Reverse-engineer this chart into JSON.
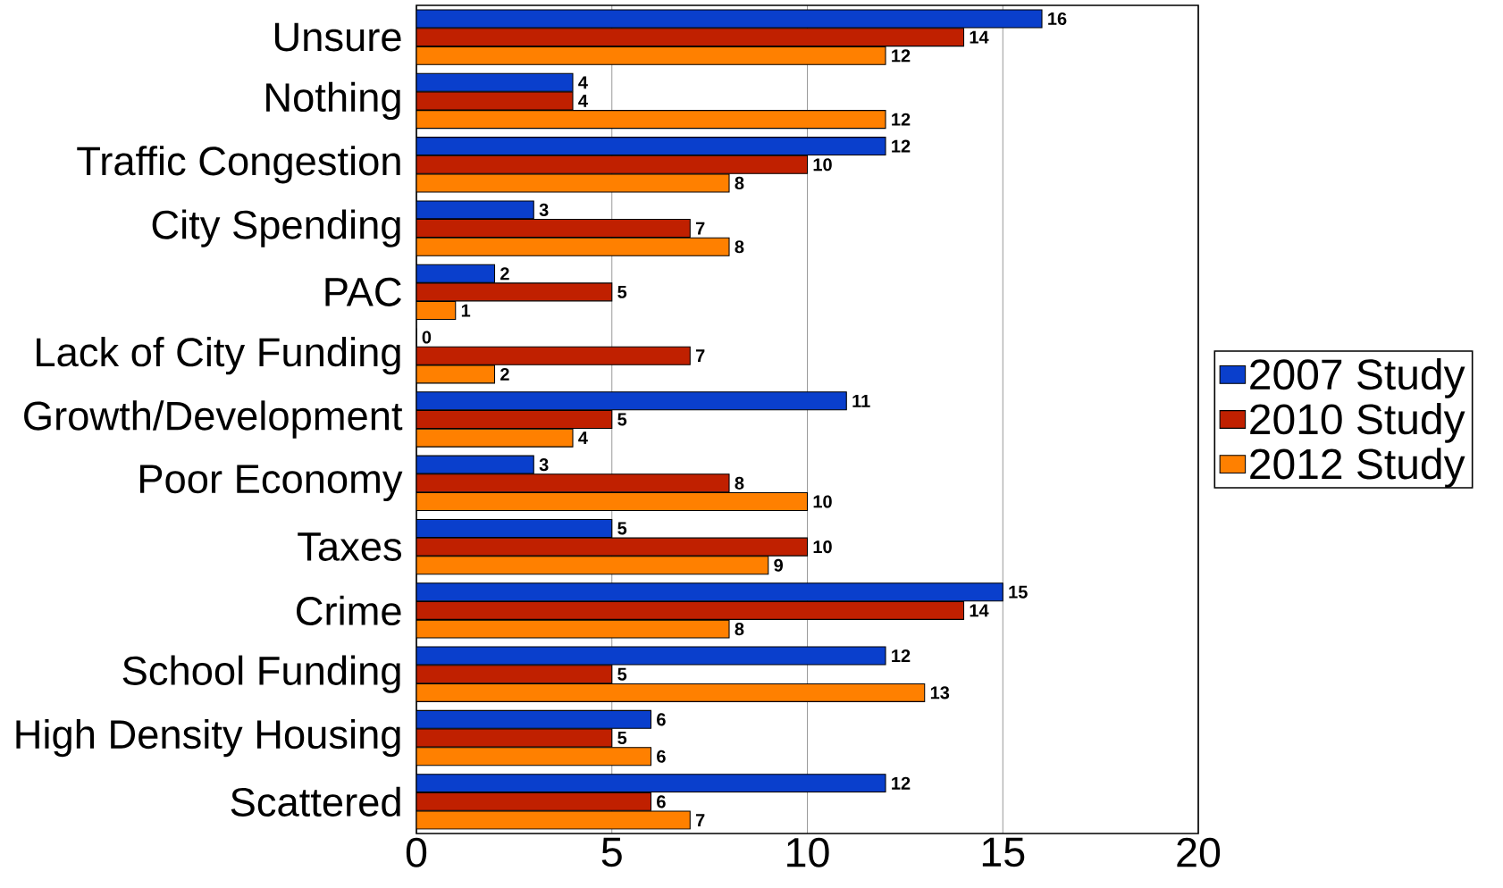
{
  "chart_data": {
    "type": "bar",
    "orientation": "horizontal",
    "categories": [
      "Unsure",
      "Nothing",
      "Traffic Congestion",
      "City Spending",
      "PAC",
      "Lack of City Funding",
      "Growth/Development",
      "Poor Economy",
      "Taxes",
      "Crime",
      "School Funding",
      "High Density Housing",
      "Scattered"
    ],
    "series": [
      {
        "name": "2007 Study",
        "color": "#0a3fcc",
        "values": [
          16,
          4,
          12,
          3,
          2,
          0,
          11,
          3,
          5,
          15,
          12,
          6,
          12
        ]
      },
      {
        "name": "2010 Study",
        "color": "#c02000",
        "values": [
          14,
          4,
          10,
          7,
          5,
          7,
          5,
          8,
          10,
          14,
          5,
          5,
          6
        ]
      },
      {
        "name": "2012 Study",
        "color": "#ff8000",
        "values": [
          12,
          12,
          8,
          8,
          1,
          2,
          4,
          10,
          9,
          8,
          13,
          6,
          7
        ]
      }
    ],
    "xlim": [
      0,
      20
    ],
    "xticks": [
      0,
      5,
      10,
      15,
      20
    ],
    "grid": "x",
    "legend": "right",
    "data_labels": true
  }
}
